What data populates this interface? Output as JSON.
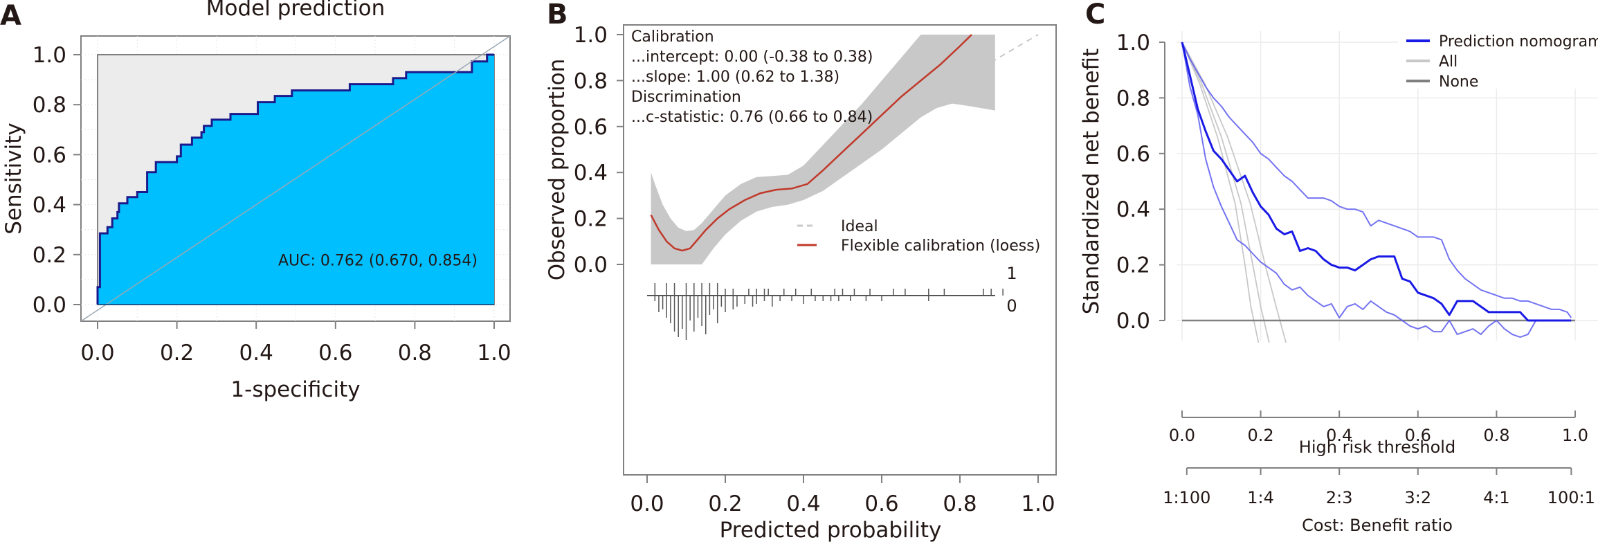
{
  "chart_data": [
    {
      "panel": "A",
      "type": "area",
      "subtype": "roc",
      "title": "Model prediction",
      "xlabel": "1-specificity",
      "ylabel": "Sensitivity",
      "xlim": [
        0,
        1
      ],
      "ylim": [
        0,
        1
      ],
      "xticks": [
        "0.0",
        "0.2",
        "0.4",
        "0.6",
        "0.8",
        "1.0"
      ],
      "yticks": [
        "0.0",
        "0.2",
        "0.4",
        "0.6",
        "0.8",
        "1.0"
      ],
      "annotation": "AUC: 0.762 (0.670, 0.854)",
      "colors": {
        "fill": "#00bfff",
        "line": "#1a1a8c",
        "background": "#ececec",
        "diagonal": "#9aa8b4"
      },
      "roc_points": [
        [
          0.0,
          0.0
        ],
        [
          0.0,
          0.07
        ],
        [
          0.006,
          0.07
        ],
        [
          0.006,
          0.285
        ],
        [
          0.025,
          0.285
        ],
        [
          0.025,
          0.31
        ],
        [
          0.037,
          0.31
        ],
        [
          0.037,
          0.345
        ],
        [
          0.05,
          0.345
        ],
        [
          0.05,
          0.37
        ],
        [
          0.054,
          0.37
        ],
        [
          0.054,
          0.405
        ],
        [
          0.075,
          0.405
        ],
        [
          0.075,
          0.43
        ],
        [
          0.1,
          0.43
        ],
        [
          0.1,
          0.45
        ],
        [
          0.125,
          0.45
        ],
        [
          0.125,
          0.53
        ],
        [
          0.147,
          0.53
        ],
        [
          0.147,
          0.57
        ],
        [
          0.2,
          0.57
        ],
        [
          0.2,
          0.593
        ],
        [
          0.21,
          0.593
        ],
        [
          0.21,
          0.64
        ],
        [
          0.238,
          0.64
        ],
        [
          0.238,
          0.668
        ],
        [
          0.262,
          0.668
        ],
        [
          0.262,
          0.69
        ],
        [
          0.268,
          0.69
        ],
        [
          0.268,
          0.715
        ],
        [
          0.288,
          0.715
        ],
        [
          0.288,
          0.74
        ],
        [
          0.335,
          0.74
        ],
        [
          0.335,
          0.763
        ],
        [
          0.404,
          0.763
        ],
        [
          0.404,
          0.81
        ],
        [
          0.447,
          0.81
        ],
        [
          0.447,
          0.835
        ],
        [
          0.49,
          0.835
        ],
        [
          0.49,
          0.857
        ],
        [
          0.636,
          0.857
        ],
        [
          0.636,
          0.882
        ],
        [
          0.745,
          0.882
        ],
        [
          0.745,
          0.906
        ],
        [
          0.778,
          0.906
        ],
        [
          0.778,
          0.93
        ],
        [
          0.944,
          0.93
        ],
        [
          0.944,
          0.973
        ],
        [
          0.982,
          0.973
        ],
        [
          0.982,
          1.0
        ],
        [
          1.0,
          1.0
        ]
      ]
    },
    {
      "panel": "B",
      "type": "line",
      "subtype": "calibration",
      "xlabel": "Predicted probability",
      "ylabel": "Observed proportion",
      "xlim": [
        0,
        1
      ],
      "ylim": [
        -0.2,
        1.0
      ],
      "xticks": [
        "0.0",
        "0.2",
        "0.4",
        "0.6",
        "0.8",
        "1.0"
      ],
      "yticks": [
        "0.0",
        "0.2",
        "0.4",
        "0.6",
        "0.8",
        "1.0"
      ],
      "annotation_lines": [
        "Calibration",
        "...intercept: 0.00 (-0.38 to 0.38)",
        "...slope: 1.00 (0.62 to 1.38)",
        "Discrimination",
        "...c-statistic: 0.76 (0.66 to 0.84)"
      ],
      "legend": [
        {
          "name": "Ideal",
          "color": "#c8c8c8",
          "style": "dashed"
        },
        {
          "name": "Flexible calibration (loess)",
          "color": "#c0392b",
          "style": "solid"
        }
      ],
      "legend_position": "center-right",
      "rug_labels": [
        "1",
        "0"
      ],
      "colors": {
        "band": "#c8c8c8"
      },
      "loess": {
        "x": [
          0.01,
          0.03,
          0.05,
          0.07,
          0.09,
          0.11,
          0.13,
          0.15,
          0.18,
          0.21,
          0.25,
          0.29,
          0.33,
          0.37,
          0.41,
          0.45,
          0.5,
          0.55,
          0.6,
          0.65,
          0.7,
          0.75,
          0.8,
          0.83
        ],
        "y": [
          0.215,
          0.15,
          0.1,
          0.07,
          0.06,
          0.07,
          0.11,
          0.15,
          0.2,
          0.24,
          0.28,
          0.31,
          0.325,
          0.33,
          0.35,
          0.41,
          0.49,
          0.57,
          0.65,
          0.73,
          0.8,
          0.87,
          0.95,
          1.0
        ]
      },
      "band_upper": {
        "x": [
          0.01,
          0.02,
          0.04,
          0.06,
          0.08,
          0.1,
          0.12,
          0.14,
          0.17,
          0.2,
          0.24,
          0.28,
          0.32,
          0.36,
          0.4,
          0.45,
          0.5,
          0.55,
          0.6,
          0.65,
          0.7,
          0.75,
          0.89
        ],
        "y": [
          0.4,
          0.35,
          0.26,
          0.2,
          0.16,
          0.145,
          0.15,
          0.18,
          0.24,
          0.3,
          0.35,
          0.38,
          0.385,
          0.39,
          0.43,
          0.52,
          0.61,
          0.7,
          0.8,
          0.9,
          1.0,
          1.0,
          1.0
        ]
      },
      "band_lower": {
        "x": [
          0.01,
          0.05,
          0.1,
          0.14,
          0.17,
          0.2,
          0.24,
          0.28,
          0.32,
          0.36,
          0.4,
          0.45,
          0.5,
          0.55,
          0.6,
          0.65,
          0.7,
          0.74,
          0.78,
          0.82,
          0.89
        ],
        "y": [
          0.0,
          0.0,
          0.0,
          0.0,
          0.07,
          0.13,
          0.19,
          0.23,
          0.25,
          0.26,
          0.28,
          0.32,
          0.38,
          0.44,
          0.5,
          0.57,
          0.64,
          0.68,
          0.7,
          0.69,
          0.67
        ]
      },
      "rug_events": [
        0.02,
        0.05,
        0.07,
        0.1,
        0.12,
        0.14,
        0.16,
        0.18,
        0.2,
        0.22,
        0.26,
        0.28,
        0.3,
        0.31,
        0.35,
        0.38,
        0.42,
        0.48,
        0.5,
        0.53,
        0.57,
        0.63,
        0.66,
        0.72,
        0.76,
        0.86,
        0.88,
        0.91
      ],
      "rug_nonevents": [
        [
          0.02,
          0.02
        ],
        [
          0.03,
          0.06
        ],
        [
          0.04,
          0.05
        ],
        [
          0.05,
          0.08
        ],
        [
          0.06,
          0.1
        ],
        [
          0.07,
          0.13
        ],
        [
          0.08,
          0.15
        ],
        [
          0.09,
          0.12
        ],
        [
          0.1,
          0.16
        ],
        [
          0.11,
          0.09
        ],
        [
          0.12,
          0.13
        ],
        [
          0.13,
          0.08
        ],
        [
          0.14,
          0.11
        ],
        [
          0.15,
          0.14
        ],
        [
          0.16,
          0.07
        ],
        [
          0.17,
          0.05
        ],
        [
          0.18,
          0.1
        ],
        [
          0.19,
          0.04
        ],
        [
          0.2,
          0.06
        ],
        [
          0.22,
          0.05
        ],
        [
          0.23,
          0.04
        ],
        [
          0.25,
          0.03
        ],
        [
          0.27,
          0.04
        ],
        [
          0.28,
          0.03
        ],
        [
          0.3,
          0.02
        ],
        [
          0.32,
          0.04
        ],
        [
          0.34,
          0.02
        ],
        [
          0.37,
          0.02
        ],
        [
          0.4,
          0.03
        ],
        [
          0.43,
          0.02
        ],
        [
          0.45,
          0.02
        ],
        [
          0.47,
          0.02
        ],
        [
          0.49,
          0.02
        ],
        [
          0.52,
          0.02
        ],
        [
          0.56,
          0.02
        ],
        [
          0.6,
          0.02
        ],
        [
          0.72,
          0.02
        ]
      ]
    },
    {
      "panel": "C",
      "type": "line",
      "subtype": "decision-curve",
      "xlabel": "High risk threshold",
      "ylabel": "Standardized net benefit",
      "xlabel2": "Cost: Benefit ratio",
      "xlim": [
        0,
        1
      ],
      "ylim": [
        0,
        1
      ],
      "xticks": [
        "0.0",
        "0.2",
        "0.4",
        "0.6",
        "0.8",
        "1.0"
      ],
      "xticks2": [
        "1:100",
        "1:4",
        "2:3",
        "3:2",
        "4:1",
        "100:1"
      ],
      "yticks": [
        "0.0",
        "0.2",
        "0.4",
        "0.6",
        "0.8",
        "1.0"
      ],
      "legend": [
        {
          "name": "Prediction nomogram",
          "color": "#1a1ae6"
        },
        {
          "name": "All",
          "color": "#c8c8c8"
        },
        {
          "name": "None",
          "color": "#808080"
        }
      ],
      "legend_position": "top-right",
      "series": [
        {
          "name": "Prediction nomogram",
          "x": [
            0.0,
            0.02,
            0.04,
            0.06,
            0.08,
            0.1,
            0.12,
            0.14,
            0.16,
            0.18,
            0.2,
            0.22,
            0.24,
            0.26,
            0.28,
            0.3,
            0.32,
            0.34,
            0.36,
            0.38,
            0.4,
            0.42,
            0.44,
            0.46,
            0.48,
            0.5,
            0.52,
            0.54,
            0.56,
            0.58,
            0.6,
            0.62,
            0.64,
            0.66,
            0.68,
            0.7,
            0.72,
            0.74,
            0.76,
            0.78,
            0.8,
            0.82,
            0.84,
            0.86,
            0.88,
            0.9,
            0.92,
            0.95,
            0.99
          ],
          "y": [
            1.0,
            0.88,
            0.76,
            0.68,
            0.61,
            0.58,
            0.54,
            0.5,
            0.52,
            0.46,
            0.41,
            0.38,
            0.33,
            0.31,
            0.32,
            0.25,
            0.26,
            0.25,
            0.22,
            0.2,
            0.19,
            0.19,
            0.18,
            0.2,
            0.22,
            0.23,
            0.23,
            0.23,
            0.15,
            0.14,
            0.1,
            0.09,
            0.08,
            0.06,
            0.02,
            0.07,
            0.07,
            0.07,
            0.05,
            0.03,
            0.03,
            0.03,
            0.03,
            0.03,
            0.0,
            0.0,
            0.0,
            0.0,
            0.0
          ]
        },
        {
          "name": "Prediction nomogram upper CI",
          "x": [
            0.0,
            0.02,
            0.04,
            0.06,
            0.08,
            0.1,
            0.12,
            0.14,
            0.16,
            0.18,
            0.2,
            0.22,
            0.24,
            0.26,
            0.28,
            0.3,
            0.32,
            0.34,
            0.36,
            0.38,
            0.4,
            0.42,
            0.44,
            0.46,
            0.48,
            0.5,
            0.52,
            0.54,
            0.56,
            0.58,
            0.6,
            0.62,
            0.64,
            0.66,
            0.68,
            0.7,
            0.72,
            0.74,
            0.76,
            0.78,
            0.8,
            0.82,
            0.84,
            0.86,
            0.88,
            0.9,
            0.92,
            0.94,
            0.96,
            0.98,
            0.99
          ],
          "y": [
            1.0,
            0.94,
            0.89,
            0.84,
            0.8,
            0.77,
            0.73,
            0.7,
            0.67,
            0.64,
            0.6,
            0.58,
            0.55,
            0.52,
            0.5,
            0.47,
            0.44,
            0.44,
            0.44,
            0.43,
            0.41,
            0.4,
            0.4,
            0.39,
            0.34,
            0.36,
            0.35,
            0.34,
            0.33,
            0.32,
            0.3,
            0.3,
            0.3,
            0.29,
            0.22,
            0.18,
            0.15,
            0.13,
            0.11,
            0.1,
            0.09,
            0.08,
            0.08,
            0.07,
            0.07,
            0.06,
            0.05,
            0.04,
            0.04,
            0.03,
            0.01
          ]
        },
        {
          "name": "Prediction nomogram lower CI",
          "x": [
            0.0,
            0.02,
            0.04,
            0.06,
            0.08,
            0.1,
            0.12,
            0.14,
            0.16,
            0.18,
            0.2,
            0.22,
            0.24,
            0.26,
            0.28,
            0.3,
            0.32,
            0.34,
            0.36,
            0.38,
            0.4,
            0.42,
            0.44,
            0.46,
            0.48,
            0.5,
            0.52,
            0.54,
            0.56,
            0.58,
            0.6,
            0.62,
            0.64,
            0.66,
            0.68,
            0.7,
            0.72,
            0.74,
            0.76,
            0.78,
            0.8,
            0.82,
            0.84,
            0.86,
            0.88,
            0.9,
            0.92
          ],
          "y": [
            1.0,
            0.84,
            0.74,
            0.58,
            0.48,
            0.41,
            0.35,
            0.29,
            0.27,
            0.24,
            0.21,
            0.19,
            0.17,
            0.13,
            0.11,
            0.12,
            0.09,
            0.07,
            0.05,
            0.06,
            0.01,
            0.05,
            0.06,
            0.04,
            0.07,
            0.05,
            0.03,
            0.02,
            0.0,
            -0.02,
            -0.03,
            -0.02,
            -0.04,
            -0.04,
            0.0,
            -0.05,
            -0.04,
            -0.03,
            -0.05,
            -0.02,
            0.0,
            -0.03,
            -0.05,
            -0.06,
            -0.05,
            0.0,
            0.0
          ]
        },
        {
          "name": "All",
          "x": [
            0.0,
            0.05,
            0.1,
            0.15,
            0.18,
            0.2,
            0.25,
            0.28
          ],
          "y": [
            1.0,
            0.85,
            0.66,
            0.42,
            0.2,
            0.05,
            -0.25,
            -0.45
          ]
        },
        {
          "name": "None",
          "x": [
            0.0,
            1.0
          ],
          "y": [
            0.0,
            0.0
          ]
        }
      ]
    }
  ],
  "panels": {
    "a_letter": "A",
    "b_letter": "B",
    "c_letter": "C"
  }
}
